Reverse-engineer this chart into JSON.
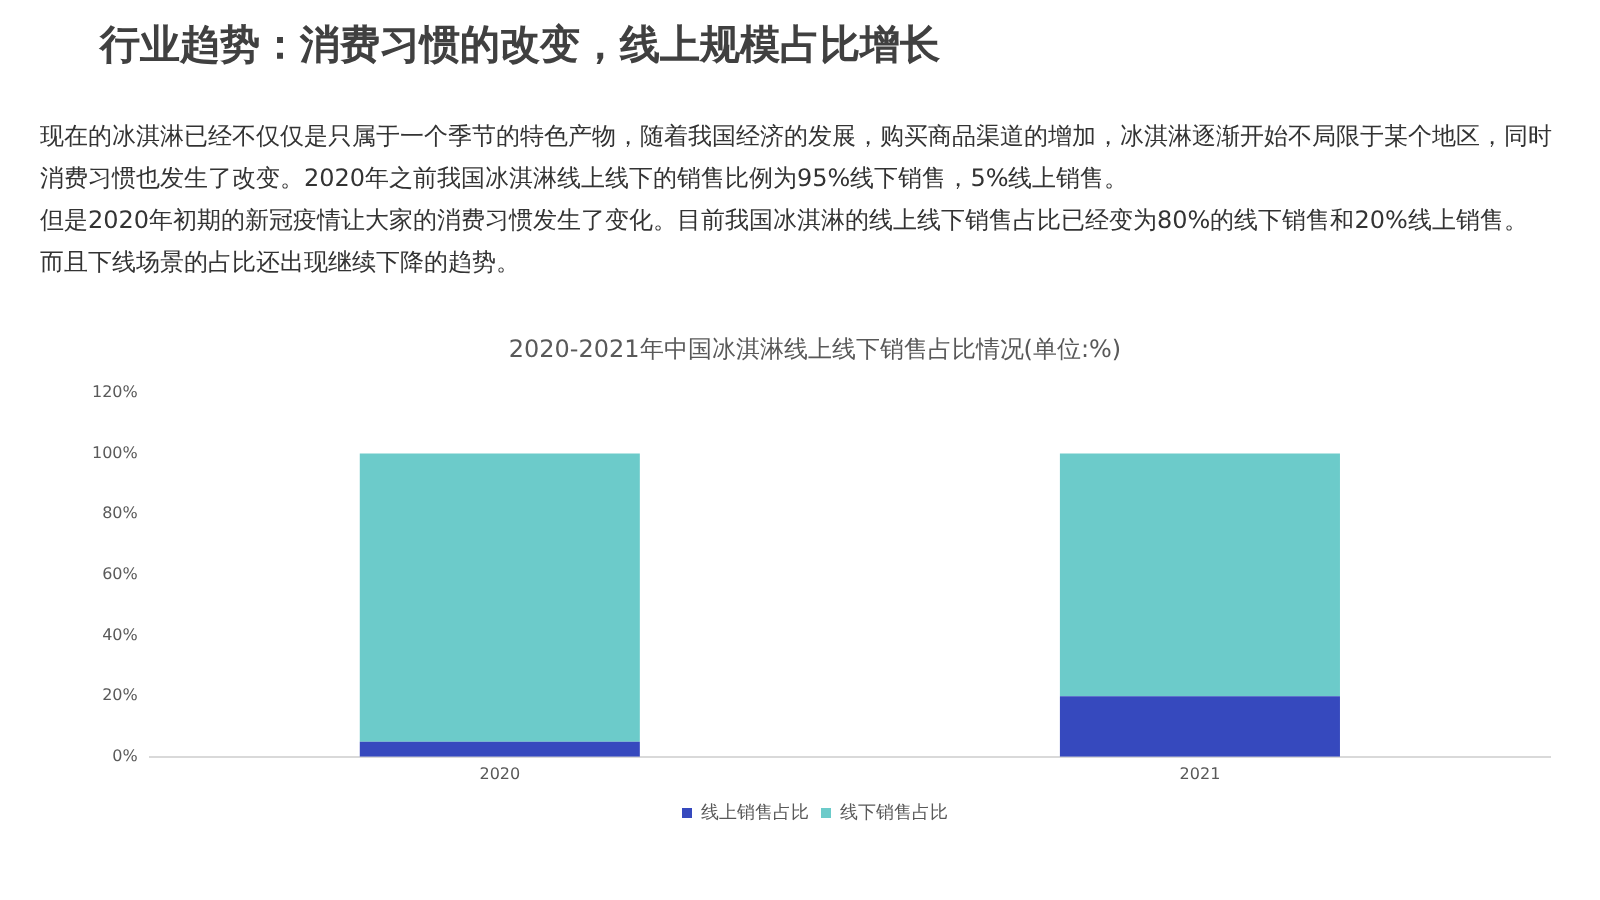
{
  "chart_data": {
    "type": "bar",
    "title": "行业趋势：消费习惯的改变，线上规模占比增长",
    "annotations": [
      "现在的冰淇淋已经不仅仅是只属于一个季节的特色产物，随着我国经济的发展，购买商品渠道的增加，冰淇淋逐渐开始不局限于某个地区，同时消费习惯也发生了改变。2020年之前我国冰淇淋线上线下的销售比例为95%线下销售，5%线上销售。",
      "但是2020年初期的新冠疫情让大家的消费习惯发生了变化。目前我国冰淇淋的线上线下销售占比已经变为80%的线下销售和20%线上销售。",
      "而且下线场景的占比还出现继续下降的趋势。"
    ],
    "subtitle": "2020-2021年中国冰淇淋线上线下销售占比情况(单位:%)",
    "categories": [
      "2020",
      "2021"
    ],
    "series": [
      {
        "name": "线上销售占比",
        "color": "#3649be",
        "values": [
          5,
          20
        ]
      },
      {
        "name": "线下销售占比",
        "color": "#6ccbca",
        "values": [
          95,
          80
        ]
      }
    ],
    "stacked": true,
    "ylim": [
      0,
      120
    ],
    "yticks": [
      {
        "value": 0,
        "label": "0%"
      },
      {
        "value": 20,
        "label": "20%"
      },
      {
        "value": 40,
        "label": "40%"
      },
      {
        "value": 60,
        "label": "60%"
      },
      {
        "value": 80,
        "label": "80%"
      },
      {
        "value": 100,
        "label": "100%"
      },
      {
        "value": 120,
        "label": "120%"
      }
    ],
    "legend": "bottom"
  }
}
